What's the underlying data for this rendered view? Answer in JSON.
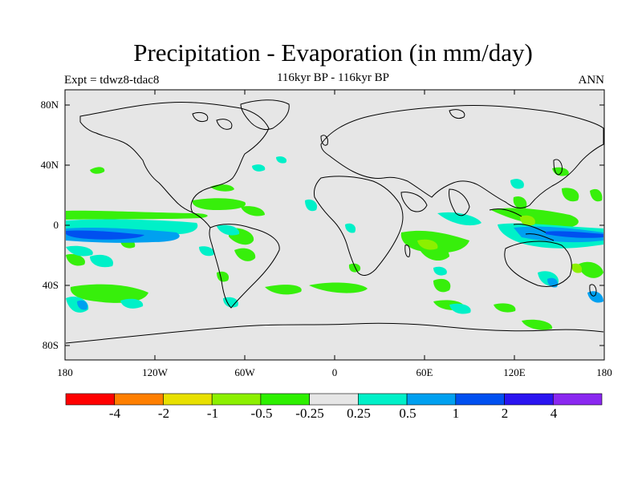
{
  "header": {
    "title": "Precipitation - Evaporation (in mm/day)",
    "subtitle": "116kyr BP - 116kyr BP",
    "left": "Expt = tdwz8-tdac8",
    "right": "ANN"
  },
  "axes": {
    "y_ticks": [
      "80N",
      "40N",
      "0",
      "40S",
      "80S"
    ],
    "x_ticks": [
      "180",
      "120W",
      "60W",
      "0",
      "60E",
      "120E",
      "180"
    ]
  },
  "colorbar": {
    "labels": [
      "-4",
      "-2",
      "-1",
      "-0.5",
      "-0.25",
      "0.25",
      "0.5",
      "1",
      "2",
      "4"
    ],
    "colors": [
      "#ff0000",
      "#ff7f00",
      "#e8e000",
      "#8cf000",
      "#2ef000",
      "#e6e6e6",
      "#00f0c8",
      "#00a0f0",
      "#0050f0",
      "#2a14f0",
      "#8a28f0"
    ]
  },
  "map": {
    "background": "#e6e6e6"
  }
}
